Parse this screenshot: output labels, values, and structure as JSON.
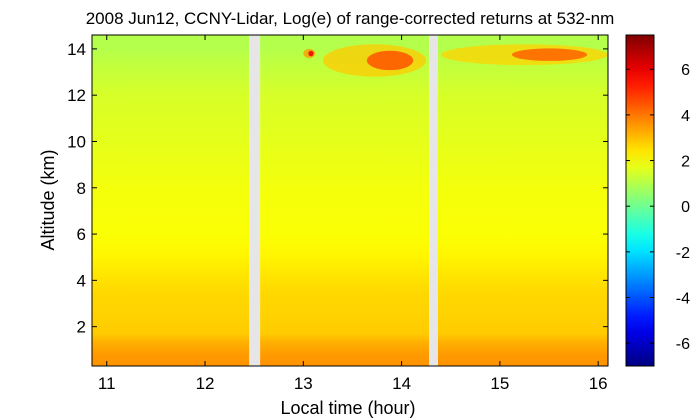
{
  "chart_data": {
    "type": "heatmap",
    "title": "2008 Jun12, CCNY-Lidar, Log(e) of range-corrected returns at 532-nm",
    "xlabel": "Local time (hour)",
    "ylabel": "Altitude (km)",
    "xlim": [
      10.85,
      16.1
    ],
    "ylim": [
      0.3,
      14.6
    ],
    "x_ticks": [
      11,
      12,
      13,
      14,
      15,
      16
    ],
    "y_ticks": [
      2,
      4,
      6,
      8,
      10,
      12,
      14
    ],
    "colorbar": {
      "range": [
        -7,
        7.5
      ],
      "ticks": [
        -6,
        -4,
        -2,
        0,
        2,
        4,
        6
      ],
      "colormap": "jet"
    },
    "data_gaps_hours": [
      [
        12.45,
        12.56
      ],
      [
        14.28,
        14.37
      ]
    ],
    "segments": [
      {
        "start": 10.85,
        "end": 12.45
      },
      {
        "start": 12.56,
        "end": 14.28
      },
      {
        "start": 14.37,
        "end": 16.1
      }
    ],
    "altitude_profile": {
      "altitude_km": [
        0.3,
        0.8,
        1.3,
        1.7,
        2.5,
        3.5,
        4.3,
        5,
        6,
        8,
        10,
        12,
        12.8,
        13.3,
        14,
        14.6
      ],
      "log_value": [
        3.6,
        3.5,
        3.2,
        2.8,
        2.7,
        2.6,
        2.4,
        2.2,
        2.0,
        1.9,
        1.7,
        1.5,
        1.3,
        1.2,
        1.0,
        1.0
      ]
    },
    "cloud_features": [
      {
        "time_start": 13.2,
        "time_end": 14.25,
        "alt_bottom_km": 12.8,
        "alt_top_km": 14.2,
        "peak_value": 4.5
      },
      {
        "time_start": 14.4,
        "time_end": 16.1,
        "alt_bottom_km": 13.3,
        "alt_top_km": 14.2,
        "peak_value": 4.3
      },
      {
        "time_start": 13.0,
        "time_end": 13.12,
        "alt_bottom_km": 13.6,
        "alt_top_km": 14.0,
        "peak_value": 6.0
      }
    ]
  }
}
